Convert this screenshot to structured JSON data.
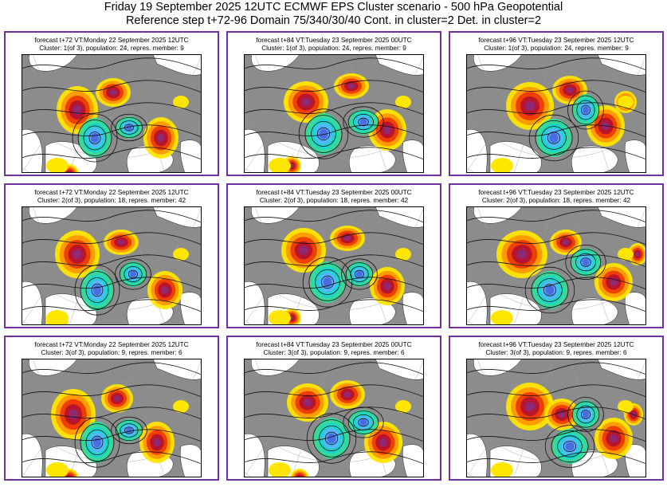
{
  "header": {
    "title_line1": "Friday 19 September 2025 12UTC ECMWF EPS Cluster scenario - 500 hPa Geopotential",
    "title_line2": "Reference step t+72-96 Domain 75/340/30/40 Cont. in cluster=2 Det. in cluster=2"
  },
  "colors": {
    "frame": "#7030a0",
    "land": "#8c8c8c",
    "sea": "#ffffff",
    "positive_anomaly": [
      "#ffe600",
      "#ff9900",
      "#ee3a00",
      "#b5122f",
      "#8b2a7a"
    ],
    "negative_anomaly": [
      "#33dd99",
      "#18d6d0",
      "#5ab4ff",
      "#4a67e0"
    ]
  },
  "panels": [
    {
      "caption_line1": "forecast t+72 VT:Monday 22 September 2025 12UTC",
      "caption_line2": "Cluster: 1(of 3), population: 24, repres. member: 9"
    },
    {
      "caption_line1": "forecast t+84 VT:Tuesday 23 September 2025 00UTC",
      "caption_line2": "Cluster: 1(of 3), population: 24, repres. member: 9"
    },
    {
      "caption_line1": "forecast t+96 VT:Tuesday 23 September 2025 12UTC",
      "caption_line2": "Cluster: 1(of 3), population: 24, repres. member: 9"
    },
    {
      "caption_line1": "forecast t+72 VT:Monday 22 September 2025 12UTC",
      "caption_line2": "Cluster: 2(of 3), population: 18, repres. member: 42"
    },
    {
      "caption_line1": "forecast t+84 VT:Tuesday 23 September 2025 00UTC",
      "caption_line2": "Cluster: 2(of 3), population: 18, repres. member: 42"
    },
    {
      "caption_line1": "forecast t+96 VT:Tuesday 23 September 2025 12UTC",
      "caption_line2": "Cluster: 2(of 3), population: 18, repres. member: 42"
    },
    {
      "caption_line1": "forecast t+72 VT:Monday 22 September 2025 12UTC",
      "caption_line2": "Cluster: 3(of 3), population: 9, repres. member: 6"
    },
    {
      "caption_line1": "forecast t+84 VT:Tuesday 23 September 2025 00UTC",
      "caption_line2": "Cluster: 3(of 3), population: 9, repres. member: 6"
    },
    {
      "caption_line1": "forecast t+96 VT:Tuesday 23 September 2025 12UTC",
      "caption_line2": "Cluster: 3(of 3), population: 9, repres. member: 6"
    }
  ]
}
